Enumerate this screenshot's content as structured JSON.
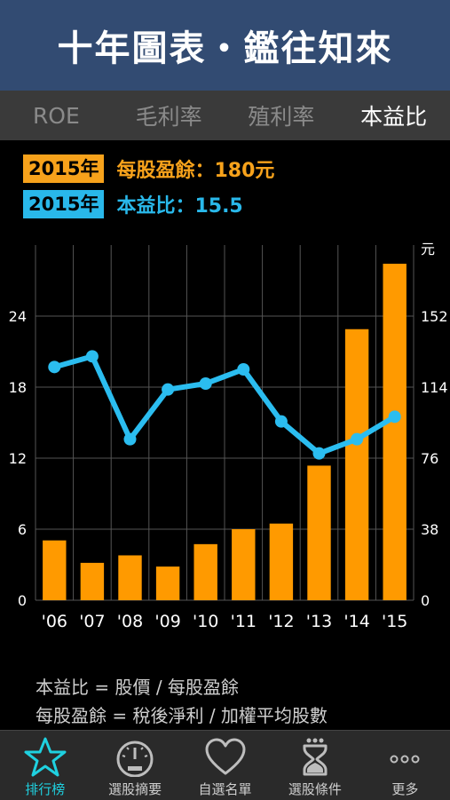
{
  "header": {
    "title": "十年圖表・鑑往知來"
  },
  "tabs": [
    {
      "label": "ROE",
      "active": false
    },
    {
      "label": "毛利率",
      "active": false
    },
    {
      "label": "殖利率",
      "active": false
    },
    {
      "label": "本益比",
      "active": true
    }
  ],
  "info": {
    "eps": {
      "year": "2015年",
      "text": "每股盈餘：180元",
      "color": "#f7a21b"
    },
    "pe": {
      "year": "2015年",
      "text": "本益比：15.5",
      "color": "#29b8ea"
    }
  },
  "chart_data": {
    "type": "bar+line",
    "categories": [
      "'06",
      "'07",
      "'08",
      "'09",
      "'10",
      "'11",
      "'12",
      "'13",
      "'14",
      "'15"
    ],
    "right_axis_unit": "元",
    "left_ticks": [
      "0",
      "6",
      "12",
      "18",
      "24"
    ],
    "right_ticks": [
      "0",
      "38",
      "76",
      "114",
      "152"
    ],
    "left_ylim": [
      0,
      30
    ],
    "right_ylim": [
      0,
      190
    ],
    "series": [
      {
        "axis": "right",
        "type": "bar",
        "color": "#ff9a00",
        "values": [
          32,
          20,
          24,
          18,
          30,
          38,
          41,
          72,
          145,
          180
        ]
      },
      {
        "axis": "left",
        "type": "line",
        "color": "#2bbdf0",
        "values": [
          19.7,
          20.6,
          13.6,
          17.8,
          18.3,
          19.5,
          15.1,
          12.4,
          13.6,
          15.5
        ]
      }
    ],
    "grid": true
  },
  "formula": {
    "line1": "本益比 = 股價 / 每股盈餘",
    "line2": "每股盈餘 = 稅後淨利 / 加權平均股數"
  },
  "tabbar": [
    {
      "label": "排行榜",
      "icon": "star-icon",
      "active": true
    },
    {
      "label": "選股摘要",
      "icon": "gauge-icon",
      "active": false
    },
    {
      "label": "自選名單",
      "icon": "heart-icon",
      "active": false
    },
    {
      "label": "選股條件",
      "icon": "hourglass-icon",
      "active": false
    },
    {
      "label": "更多",
      "icon": "more-dots-icon",
      "active": false
    }
  ]
}
